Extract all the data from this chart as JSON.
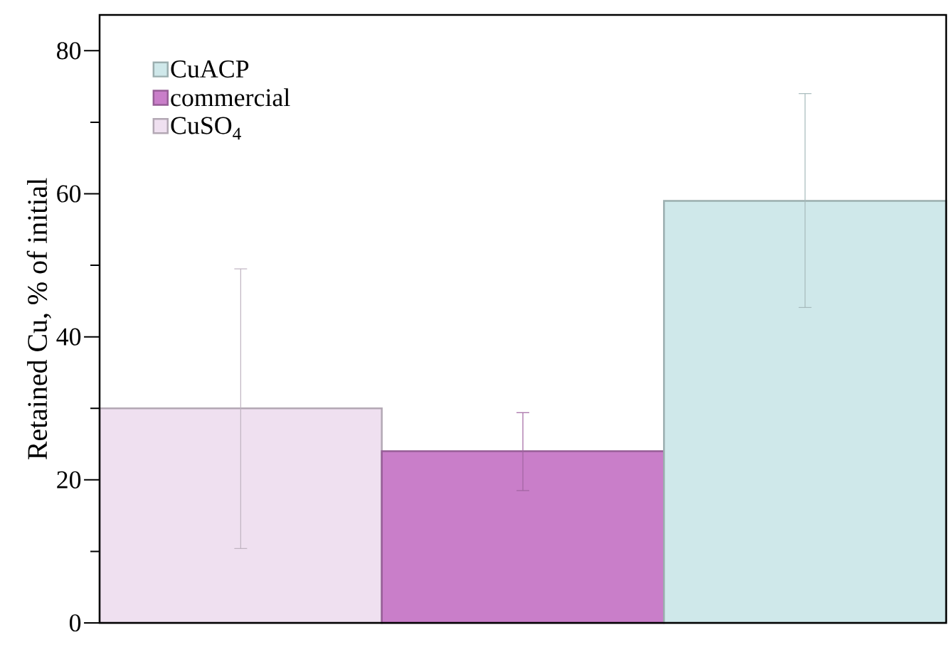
{
  "chart_data": {
    "type": "bar",
    "ylabel": "Retained Cu, % of initial",
    "categories": [
      null
    ],
    "series": [
      {
        "name": "CuSO$_{4}$",
        "color": "#efe0f0",
        "values": [
          30
        ],
        "errors": [
          [
            10.4,
            49.5
          ]
        ]
      },
      {
        "name": "commercial",
        "color": "#c97ec9",
        "values": [
          24
        ],
        "errors": [
          [
            18.5,
            29.4
          ]
        ]
      },
      {
        "name": "CuACP",
        "color": "#cfe8ea",
        "values": [
          59
        ],
        "errors": [
          [
            44.1,
            74
          ]
        ]
      }
    ],
    "ylim": [
      0,
      85
    ],
    "yticks": [
      0,
      {
        "value": 10,
        "label": null
      },
      20,
      {
        "value": 30,
        "label": null
      },
      40,
      {
        "value": 50,
        "label": null
      },
      60,
      {
        "value": 70,
        "label": null
      },
      80
    ],
    "legend": "top left"
  }
}
